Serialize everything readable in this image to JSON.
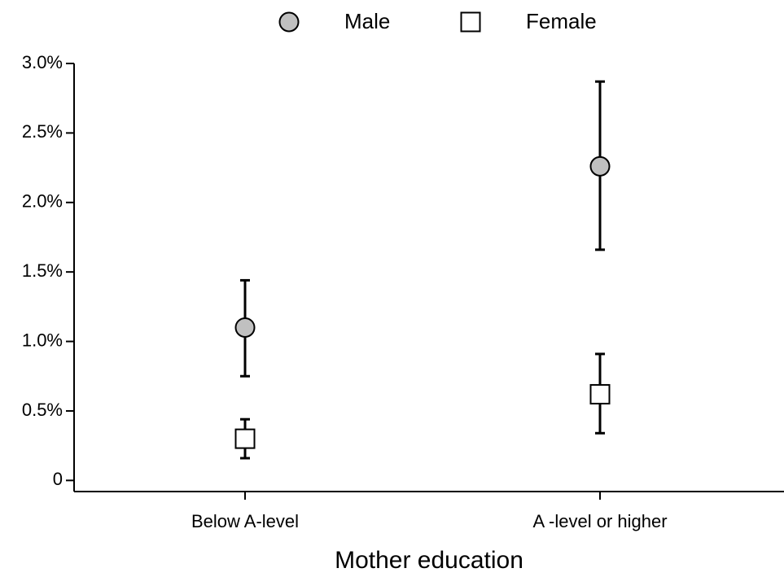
{
  "chart_data": {
    "type": "dot",
    "x_label": "Mother education",
    "categories": [
      "Below A-level",
      "A -level or higher"
    ],
    "series": [
      {
        "name": "Male",
        "color": "#c0c0c0",
        "marker": "circle",
        "values": [
          1.1,
          2.26
        ],
        "lower": [
          0.75,
          1.66
        ],
        "upper": [
          1.44,
          2.87
        ]
      },
      {
        "name": "Female",
        "color": "#ffffff",
        "marker": "square",
        "values": [
          0.3,
          0.62
        ],
        "lower": [
          0.16,
          0.34
        ],
        "upper": [
          0.44,
          0.91
        ]
      }
    ],
    "ylim": [
      -0.08,
      3.0
    ],
    "yticks": [
      0,
      {
        "value": 0.5,
        "label": "0.5%"
      },
      {
        "value": 1.0,
        "label": "1.0%"
      },
      {
        "value": 1.5,
        "label": "1.5%"
      },
      {
        "value": 2.0,
        "label": "2.0%"
      },
      {
        "value": 2.5,
        "label": "2.5%"
      },
      {
        "value": 3.0,
        "label": "3.0%"
      }
    ],
    "legend": "top",
    "grid": false
  }
}
